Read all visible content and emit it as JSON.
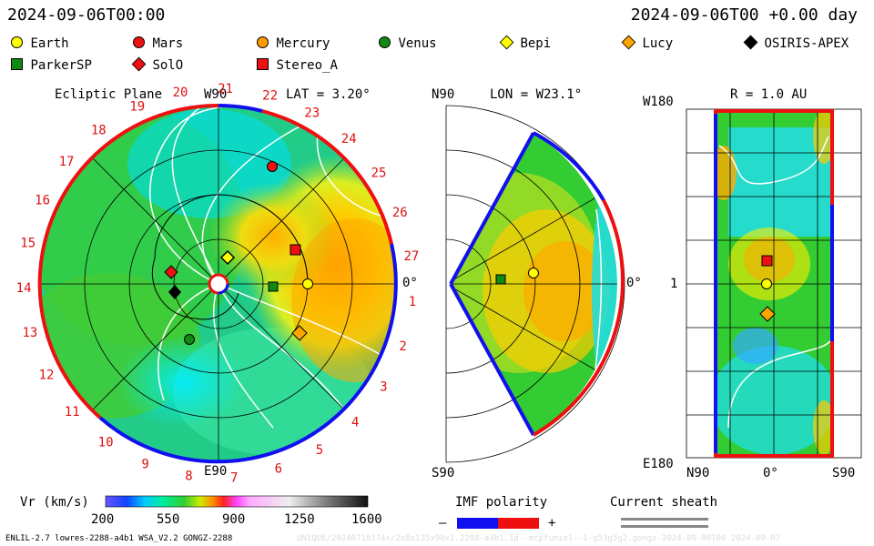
{
  "header": {
    "datetime_left": "2024-09-06T00:00",
    "datetime_right": "2024-09-06T00 +0.00 day"
  },
  "legend": [
    {
      "name": "Earth",
      "color": "#ffff00",
      "shape": "circle"
    },
    {
      "name": "Mars",
      "color": "#ee1111",
      "shape": "circle"
    },
    {
      "name": "Mercury",
      "color": "#ff9900",
      "shape": "circle"
    },
    {
      "name": "Venus",
      "color": "#118811",
      "shape": "circle"
    },
    {
      "name": "Bepi",
      "color": "#ffff00",
      "shape": "diamond"
    },
    {
      "name": "Lucy",
      "color": "#ffa500",
      "shape": "diamond"
    },
    {
      "name": "OSIRIS-APEX",
      "color": "#000000",
      "shape": "diamond"
    },
    {
      "name": "ParkerSP",
      "color": "#118811",
      "shape": "square"
    },
    {
      "name": "SolO",
      "color": "#ee1111",
      "shape": "diamond"
    },
    {
      "name": "Stereo_A",
      "color": "#ee1111",
      "shape": "square"
    }
  ],
  "ecliptic": {
    "title": "Ecliptic Plane",
    "top_label": "W90",
    "bottom_label": "E90",
    "right_label": "0°",
    "lat_label": "LAT = 3.20°",
    "carrington_numbers": [
      "1",
      "2",
      "3",
      "4",
      "5",
      "6",
      "7",
      "8",
      "9",
      "10",
      "11",
      "12",
      "13",
      "14",
      "15",
      "16",
      "17",
      "18",
      "19",
      "20",
      "21",
      "22",
      "23",
      "24",
      "25",
      "26",
      "27"
    ]
  },
  "meridional": {
    "top_label": "N90",
    "bottom_label": "S90",
    "right_label": "0°",
    "lon_label": "LON = W23.1°"
  },
  "radial": {
    "title": "R = 1.0 AU",
    "top_label": "W180",
    "bottom_label": "E180",
    "mid_label": "1",
    "x_labels": [
      "N90",
      "0°",
      "S90"
    ]
  },
  "colorbar": {
    "label": "Vr (km/s)",
    "ticks": [
      "200",
      "550",
      "900",
      "1250",
      "1600"
    ]
  },
  "imf": {
    "label": "IMF polarity",
    "minus": "–",
    "plus": "+",
    "colors": {
      "negative": "#1010ee",
      "positive": "#ee1010"
    }
  },
  "current_sheath": {
    "label": "Current sheath"
  },
  "footer": {
    "model_info": "ENLIL-2.7 lowres-2288-a4b1 WSA_V2.2 GONGZ-2288",
    "faint_info": "UNIQUE/20240718174+/2x8x135x90x1.2288-a4b1.1d--mcpfuniel--1-g53g5g2.gongz-2024-09-00T00    2024-09-07"
  }
}
